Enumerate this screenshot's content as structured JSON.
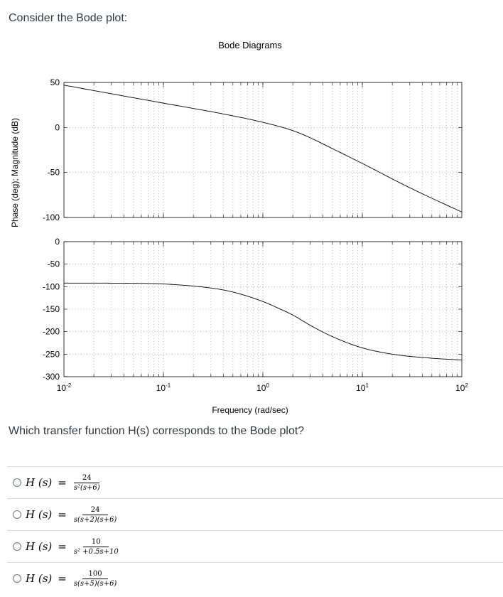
{
  "prompt": "Consider the Bode plot:",
  "chart_data": [
    {
      "type": "line",
      "title": "Bode Diagrams",
      "ylabel": "Phase (deg); Magnitude (dB)",
      "xlabel": "",
      "x_scale": "log",
      "xlim": [
        0.01,
        100
      ],
      "ylim": [
        -100,
        50
      ],
      "yticks": [
        "50",
        "0",
        "-50",
        "-100"
      ],
      "grid": true,
      "x": [
        0.01,
        0.1,
        0.4,
        1,
        2,
        3,
        5,
        10,
        30,
        100
      ],
      "series": [
        {
          "values": [
            47,
            27,
            15,
            5.7,
            -3.5,
            -11.5,
            -23.5,
            -40,
            -67,
            -94
          ]
        }
      ]
    },
    {
      "type": "line",
      "title": "",
      "xlabel": "Frequency (rad/sec)",
      "x_scale": "log",
      "xlim": [
        0.01,
        100
      ],
      "ylim": [
        -300,
        0
      ],
      "yticks": [
        "0",
        "-50",
        "-100",
        "-150",
        "-200",
        "-250",
        "-300"
      ],
      "xticks": [
        {
          "base": "10",
          "exp": "-2"
        },
        {
          "base": "10",
          "exp": "-1"
        },
        {
          "base": "10",
          "exp": "0"
        },
        {
          "base": "10",
          "exp": "1"
        },
        {
          "base": "10",
          "exp": "2"
        }
      ],
      "grid": true,
      "x": [
        0.01,
        0.05,
        0.1,
        0.3,
        0.5,
        1,
        1.5,
        2,
        3,
        5,
        10,
        20,
        50,
        100
      ],
      "series": [
        {
          "values": [
            -92,
            -92.5,
            -94,
            -103,
            -112,
            -133,
            -150,
            -163,
            -186,
            -211,
            -236,
            -250,
            -259,
            -263
          ]
        }
      ]
    }
  ],
  "question": "Which transfer function H(s) corresponds to the Bode plot?",
  "answers": [
    {
      "lhs": "H (s)",
      "eq": "=",
      "num": "24",
      "den": "s²(s+6)"
    },
    {
      "lhs": "H (s)",
      "eq": "=",
      "num": "24",
      "den": "s(s+2)(s+6)"
    },
    {
      "lhs": "H (s)",
      "eq": "=",
      "num": "10",
      "den": "s² +0.5s+10"
    },
    {
      "lhs": "H (s)",
      "eq": "=",
      "num": "100",
      "den": "s(s+5)(s+6)"
    }
  ]
}
